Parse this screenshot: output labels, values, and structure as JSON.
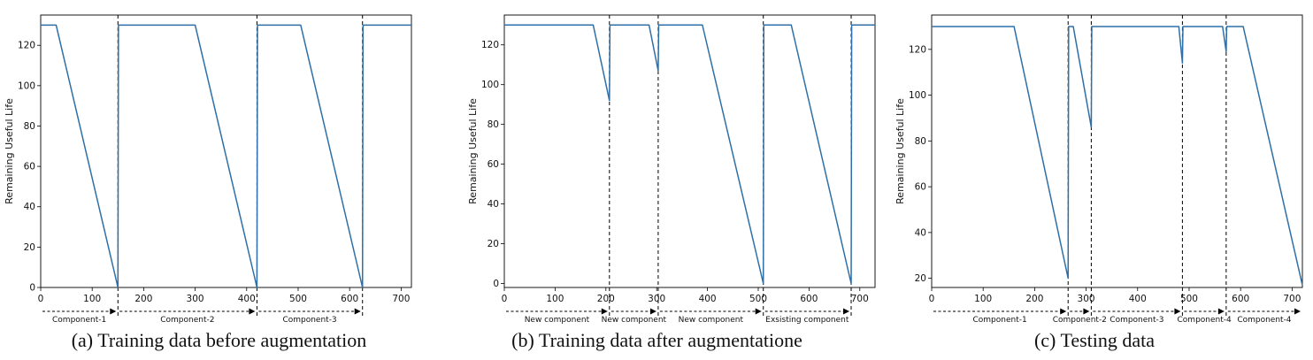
{
  "chart_data": [
    {
      "type": "line",
      "caption": "(a) Training data before augmentation",
      "ylabel": "Remaining Useful Life",
      "xlim": [
        0,
        720
      ],
      "ylim": [
        0,
        135
      ],
      "xticks": [
        0,
        100,
        200,
        300,
        400,
        500,
        600,
        700
      ],
      "yticks": [
        0,
        20,
        40,
        60,
        80,
        100,
        120
      ],
      "series": [
        {
          "color": "#2f6fa8",
          "x": [
            0,
            30,
            150,
            151,
            300,
            420,
            421,
            505,
            625,
            626,
            720
          ],
          "y": [
            130,
            130,
            0,
            130,
            130,
            0,
            130,
            130,
            0,
            130,
            130
          ]
        }
      ],
      "boundaries": [
        150,
        420,
        625
      ],
      "segments": [
        {
          "label": "Component-1",
          "x_start": 0,
          "x_end": 150
        },
        {
          "label": "Component-2",
          "x_start": 150,
          "x_end": 420
        },
        {
          "label": "Component-3",
          "x_start": 420,
          "x_end": 625
        }
      ]
    },
    {
      "type": "line",
      "caption": "(b) Training data after augmentatione",
      "ylabel": "Remaining Useful Life",
      "xlim": [
        0,
        730
      ],
      "ylim": [
        -2,
        135
      ],
      "xticks": [
        0,
        100,
        200,
        300,
        400,
        500,
        600,
        700
      ],
      "yticks": [
        0,
        20,
        40,
        60,
        80,
        100,
        120
      ],
      "series": [
        {
          "color": "#2f6fa8",
          "x": [
            0,
            175,
            207,
            208,
            285,
            303,
            304,
            390,
            510,
            511,
            565,
            683,
            684,
            730
          ],
          "y": [
            130,
            130,
            92,
            130,
            130,
            107,
            130,
            130,
            0,
            130,
            130,
            0,
            130,
            130
          ]
        }
      ],
      "boundaries": [
        207,
        303,
        510,
        683
      ],
      "segments": [
        {
          "label": "New component",
          "x_start": 0,
          "x_end": 207
        },
        {
          "label": "New component",
          "x_start": 207,
          "x_end": 303
        },
        {
          "label": "New component",
          "x_start": 303,
          "x_end": 510
        },
        {
          "label": "Exsisting component",
          "x_start": 510,
          "x_end": 683
        }
      ]
    },
    {
      "type": "line",
      "caption": "(c) Testing data",
      "ylabel": "Remaining Useful Life",
      "xlim": [
        0,
        720
      ],
      "ylim": [
        16,
        135
      ],
      "xticks": [
        0,
        100,
        200,
        300,
        400,
        500,
        600,
        700
      ],
      "yticks": [
        20,
        40,
        60,
        80,
        100,
        120
      ],
      "series": [
        {
          "color": "#2f6fa8",
          "x": [
            0,
            160,
            265,
            266,
            275,
            310,
            311,
            480,
            487,
            488,
            565,
            572,
            573,
            605,
            720
          ],
          "y": [
            130,
            130,
            20,
            130,
            130,
            86,
            130,
            130,
            114,
            130,
            130,
            119,
            130,
            130,
            17
          ]
        }
      ],
      "boundaries": [
        265,
        310,
        487,
        572
      ],
      "segments": [
        {
          "label": "Component-1",
          "x_start": 0,
          "x_end": 265
        },
        {
          "label": "Component-2",
          "x_start": 265,
          "x_end": 310
        },
        {
          "label": "Component-3",
          "x_start": 310,
          "x_end": 487
        },
        {
          "label": "Component-4",
          "x_start": 487,
          "x_end": 572
        },
        {
          "label": "Component-4",
          "x_start": 572,
          "x_end": 720
        }
      ]
    }
  ]
}
